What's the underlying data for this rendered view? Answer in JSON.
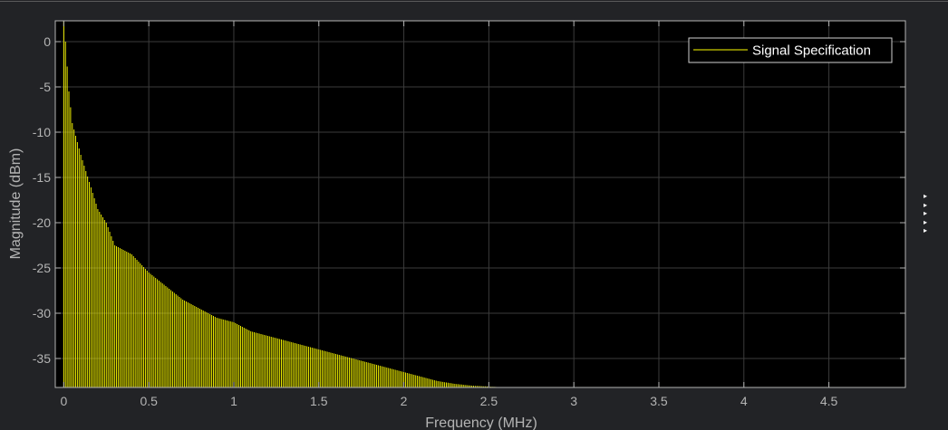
{
  "chart_data": {
    "type": "line",
    "title": "",
    "xlabel": "Frequency (MHz)",
    "ylabel": "Magnitude (dBm)",
    "xlim": [
      -0.05,
      4.95
    ],
    "ylim": [
      -38.2,
      2.3
    ],
    "xticks": [
      0,
      0.5,
      1,
      1.5,
      2,
      2.5,
      3,
      3.5,
      4,
      4.5
    ],
    "xtick_labels": [
      "0",
      "0.5",
      "1",
      "1.5",
      "2",
      "2.5",
      "3",
      "3.5",
      "4",
      "4.5"
    ],
    "yticks": [
      0,
      -5,
      -10,
      -15,
      -20,
      -25,
      -30,
      -35
    ],
    "ytick_labels": [
      "0",
      "-5",
      "-10",
      "-15",
      "-20",
      "-25",
      "-30",
      "-35"
    ],
    "grid": true,
    "legend_position": "top-right",
    "background": "#000000",
    "axes_color": "#b4b4b4",
    "grid_color": "#3c3c3c",
    "series": [
      {
        "name": "Signal Specification",
        "color": "#ffff00",
        "peak_envelope": {
          "x": [
            0,
            0.01,
            0.03,
            0.05,
            0.1,
            0.15,
            0.2,
            0.25,
            0.3,
            0.4,
            0.5,
            0.6,
            0.7,
            0.8,
            0.9,
            1.0,
            1.1,
            1.2,
            1.3,
            1.4,
            1.5,
            1.6,
            1.7,
            1.8,
            1.9,
            2.0,
            2.1,
            2.2,
            2.3,
            2.4,
            2.5,
            2.6
          ],
          "y": [
            2.3,
            0,
            -5.5,
            -9,
            -12.5,
            -15.5,
            -18.5,
            -20,
            -22.5,
            -23.5,
            -25.5,
            -27,
            -28.5,
            -29.5,
            -30.5,
            -31,
            -32,
            -32.5,
            -33,
            -33.5,
            -34,
            -34.5,
            -35,
            -35.5,
            -36,
            -36.5,
            -37,
            -37.5,
            -37.8,
            -38,
            -38.1,
            -38.2
          ]
        },
        "line_spacing_mhz": 0.01
      }
    ]
  },
  "side_markers": [
    "▸",
    "▸",
    "▸",
    "▸",
    "▸"
  ]
}
